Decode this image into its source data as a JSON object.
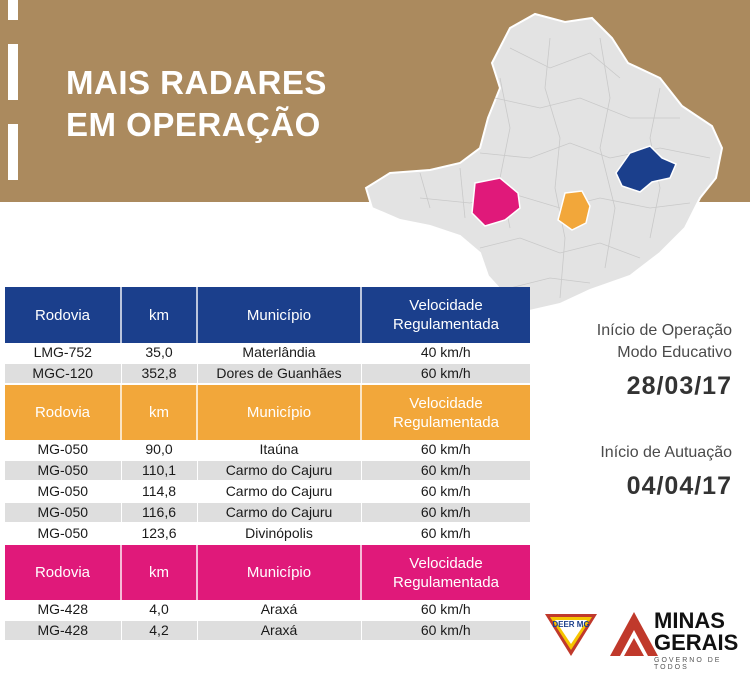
{
  "banner": {
    "title_line1": "MAIS RADARES",
    "title_line2": "EM OPERAÇÃO"
  },
  "columns": {
    "rodovia": "Rodovia",
    "km": "km",
    "municipio": "Município",
    "velocidade": "Velocidade Regulamentada"
  },
  "groups": [
    {
      "color": "#1b3f8c",
      "rows": [
        {
          "rodovia": "LMG-752",
          "km": "35,0",
          "municipio": "Materlândia",
          "velocidade": "40 km/h"
        },
        {
          "rodovia": "MGC-120",
          "km": "352,8",
          "municipio": "Dores de Guanhães",
          "velocidade": "60 km/h"
        }
      ]
    },
    {
      "color": "#f2a73a",
      "rows": [
        {
          "rodovia": "MG-050",
          "km": "90,0",
          "municipio": "Itaúna",
          "velocidade": "60 km/h"
        },
        {
          "rodovia": "MG-050",
          "km": "110,1",
          "municipio": "Carmo do Cajuru",
          "velocidade": "60 km/h"
        },
        {
          "rodovia": "MG-050",
          "km": "114,8",
          "municipio": "Carmo do Cajuru",
          "velocidade": "60 km/h"
        },
        {
          "rodovia": "MG-050",
          "km": "116,6",
          "municipio": "Carmo do Cajuru",
          "velocidade": "60 km/h"
        },
        {
          "rodovia": "MG-050",
          "km": "123,6",
          "municipio": "Divinópolis",
          "velocidade": "60 km/h"
        }
      ]
    },
    {
      "color": "#e0197a",
      "rows": [
        {
          "rodovia": "MG-428",
          "km": "4,0",
          "municipio": "Araxá",
          "velocidade": "60 km/h"
        },
        {
          "rodovia": "MG-428",
          "km": "4,2",
          "municipio": "Araxá",
          "velocidade": "60 km/h"
        }
      ]
    }
  ],
  "operation": {
    "label1": "Início de Operação",
    "label2": "Modo Educativo",
    "date": "28/03/17"
  },
  "enforcement": {
    "label": "Início de Autuação",
    "date": "04/04/17"
  },
  "logos": {
    "deer_text": "DEER MG",
    "mg_line1": "MINAS",
    "mg_line2": "GERAIS",
    "mg_sub": "GOVERNO DE TODOS"
  },
  "map_colors": {
    "base": "#e3e3e3",
    "blue": "#1b3f8c",
    "orange": "#f2a73a",
    "pink": "#e0197a"
  }
}
